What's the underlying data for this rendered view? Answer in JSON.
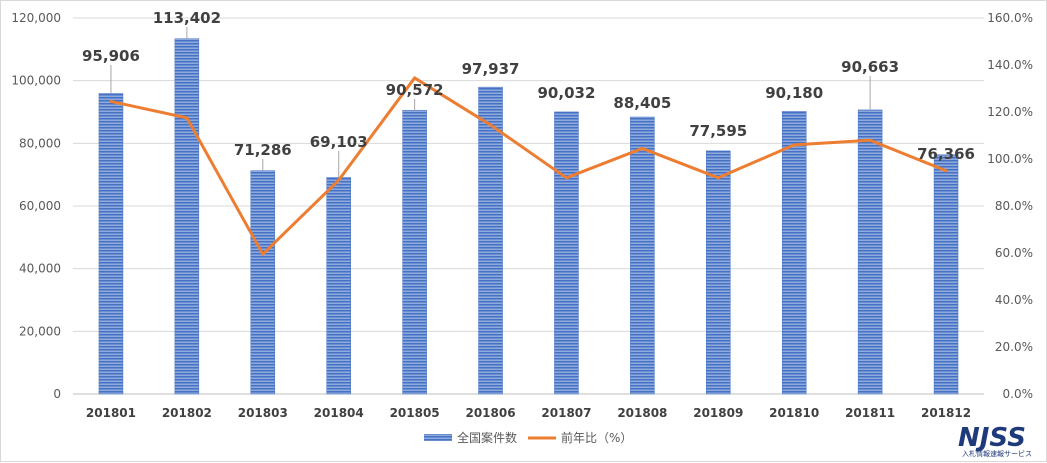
{
  "chart_data": {
    "type": "bar",
    "categories": [
      "201801",
      "201802",
      "201803",
      "201804",
      "201805",
      "201806",
      "201807",
      "201808",
      "201809",
      "201810",
      "201811",
      "201812"
    ],
    "series": [
      {
        "name": "全国案件数",
        "type": "bar",
        "axis": "left",
        "values": [
          95906,
          113402,
          71286,
          69103,
          90572,
          97937,
          90032,
          88405,
          77595,
          90180,
          90663,
          76366
        ],
        "labels": [
          "95,906",
          "113,402",
          "71,286",
          "69,103",
          "90,572",
          "97,937",
          "90,032",
          "88,405",
          "77,595",
          "90,180",
          "90,663",
          "76,366"
        ],
        "color": "#4472c4"
      },
      {
        "name": "前年比（%）",
        "type": "line",
        "axis": "right",
        "values": [
          124.5,
          117.5,
          59.5,
          91.0,
          134.5,
          114.5,
          92.0,
          104.5,
          92.0,
          106.0,
          108.0,
          95.0
        ],
        "color": "#ed7d31"
      }
    ],
    "y_left": {
      "min": 0,
      "max": 120000,
      "ticks": [
        "0",
        "20,000",
        "40,000",
        "60,000",
        "80,000",
        "100,000",
        "120,000"
      ]
    },
    "y_right": {
      "min": 0,
      "max": 160,
      "ticks": [
        "0.0%",
        "20.0%",
        "40.0%",
        "60.0%",
        "80.0%",
        "100.0%",
        "120.0%",
        "140.0%",
        "160.0%"
      ]
    },
    "grid": true,
    "legend_position": "bottom"
  },
  "logo": {
    "text": "NJSS",
    "subtitle": "入札情報速報サービス"
  }
}
